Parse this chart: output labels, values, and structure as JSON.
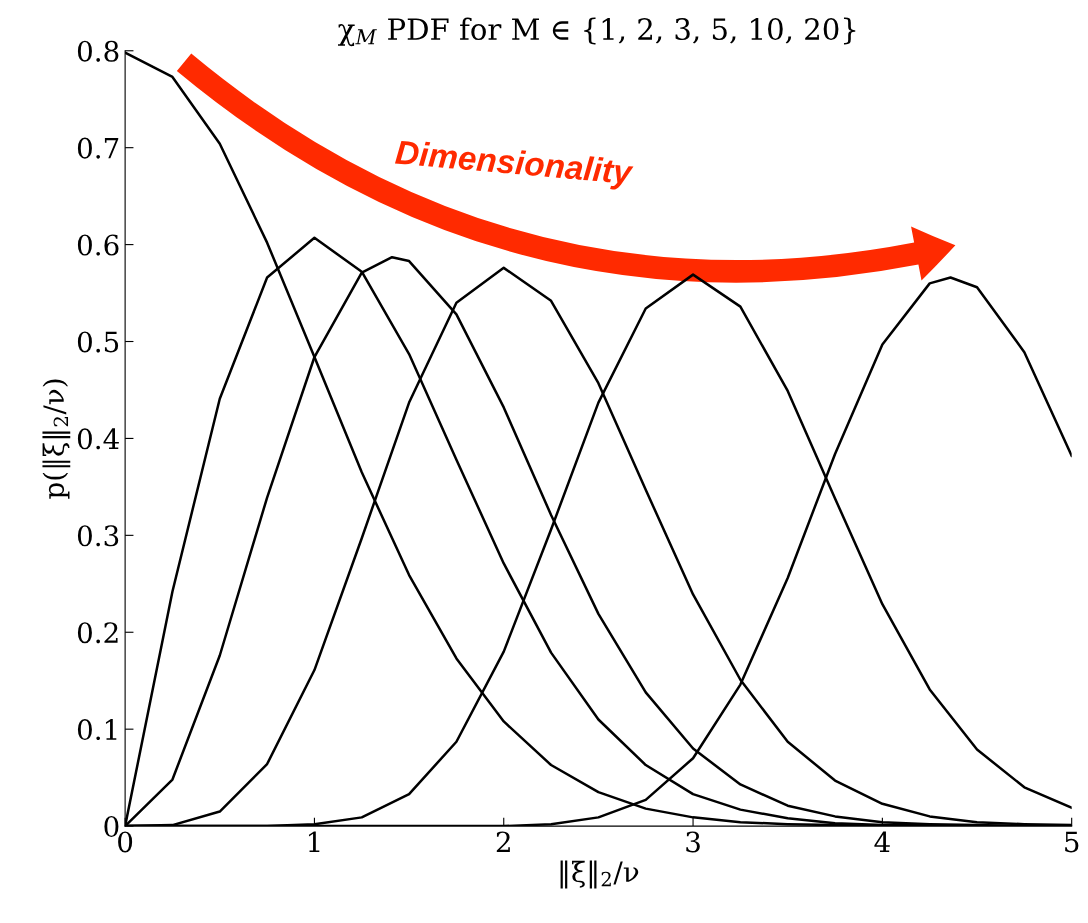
{
  "chart_data": {
    "type": "line",
    "title": "χ$_{M}$ PDF for M ∈ {1, 2, 3, 5, 10, 20}",
    "xlabel": "‖ξ‖$_{2}$/ν",
    "ylabel": "p(‖ξ‖$_{2}$/ν)",
    "annotations": [
      "Dimensionality"
    ],
    "xlim": [
      0,
      5
    ],
    "ylim": [
      0,
      0.8
    ],
    "xticks": [
      0,
      1,
      2,
      3,
      4,
      5
    ],
    "yticks": [
      0,
      0.1,
      0.2,
      0.3,
      0.4,
      0.5,
      0.6,
      0.7,
      0.8
    ],
    "grid": false,
    "legend": false,
    "marker": "none",
    "line_style": "solid",
    "series": [
      {
        "color": "#000000",
        "x": [
          0,
          0.25,
          0.5,
          0.75,
          1,
          1.25,
          1.5,
          1.75,
          2,
          2.25,
          2.5,
          2.75,
          3,
          3.25,
          3.5,
          3.75,
          4,
          4.25,
          4.5,
          4.75,
          5
        ],
        "values": [
          0.798,
          0.773,
          0.704,
          0.602,
          0.484,
          0.365,
          0.259,
          0.173,
          0.108,
          0.063,
          0.035,
          0.018,
          0.009,
          0.004,
          0.002,
          0.001,
          0,
          0,
          0,
          0,
          0
        ]
      },
      {
        "color": "#000000",
        "x": [
          0,
          0.25,
          0.5,
          0.75,
          1,
          1.25,
          1.5,
          1.75,
          2,
          2.25,
          2.5,
          2.75,
          3,
          3.25,
          3.5,
          3.75,
          4,
          4.25,
          4.5,
          4.75,
          5
        ],
        "values": [
          0,
          0.242,
          0.441,
          0.566,
          0.607,
          0.572,
          0.487,
          0.378,
          0.271,
          0.179,
          0.11,
          0.063,
          0.033,
          0.017,
          0.008,
          0.003,
          0.001,
          0.001,
          0,
          0,
          0
        ]
      },
      {
        "color": "#000000",
        "x": [
          0,
          0.25,
          0.5,
          0.75,
          1,
          1.25,
          1.41,
          1.5,
          1.75,
          2,
          2.25,
          2.5,
          2.75,
          3,
          3.25,
          3.5,
          3.75,
          4,
          4.25,
          4.5,
          4.75,
          5
        ],
        "values": [
          0,
          0.048,
          0.176,
          0.339,
          0.484,
          0.571,
          0.587,
          0.583,
          0.528,
          0.432,
          0.321,
          0.219,
          0.138,
          0.08,
          0.043,
          0.021,
          0.01,
          0.004,
          0.002,
          0.001,
          0,
          0
        ]
      },
      {
        "color": "#000000",
        "x": [
          0,
          0.25,
          0.5,
          0.75,
          1,
          1.25,
          1.5,
          1.75,
          2,
          2.25,
          2.5,
          2.75,
          3,
          3.25,
          3.5,
          3.75,
          4,
          4.25,
          4.5,
          4.75,
          5
        ],
        "values": [
          0,
          0.001,
          0.015,
          0.064,
          0.161,
          0.297,
          0.437,
          0.54,
          0.576,
          0.542,
          0.457,
          0.347,
          0.239,
          0.151,
          0.087,
          0.047,
          0.023,
          0.01,
          0.004,
          0.002,
          0.001
        ]
      },
      {
        "color": "#000000",
        "x": [
          0,
          0.25,
          0.5,
          0.75,
          1,
          1.25,
          1.5,
          1.75,
          2,
          2.25,
          2.5,
          2.75,
          3,
          3.25,
          3.5,
          3.75,
          4,
          4.25,
          4.5,
          4.75,
          5
        ],
        "values": [
          0,
          0,
          0,
          0,
          0.002,
          0.009,
          0.033,
          0.087,
          0.18,
          0.306,
          0.437,
          0.534,
          0.569,
          0.536,
          0.449,
          0.338,
          0.229,
          0.141,
          0.079,
          0.04,
          0.019
        ]
      },
      {
        "color": "#000000",
        "x": [
          0,
          0.5,
          1,
          1.5,
          1.75,
          2,
          2.25,
          2.5,
          2.75,
          3,
          3.25,
          3.5,
          3.75,
          4,
          4.25,
          4.36,
          4.5,
          4.75,
          5
        ],
        "values": [
          0,
          0,
          0,
          0,
          0,
          0,
          0.002,
          0.009,
          0.027,
          0.07,
          0.146,
          0.256,
          0.384,
          0.497,
          0.56,
          0.566,
          0.556,
          0.489,
          0.382
        ]
      }
    ]
  }
}
